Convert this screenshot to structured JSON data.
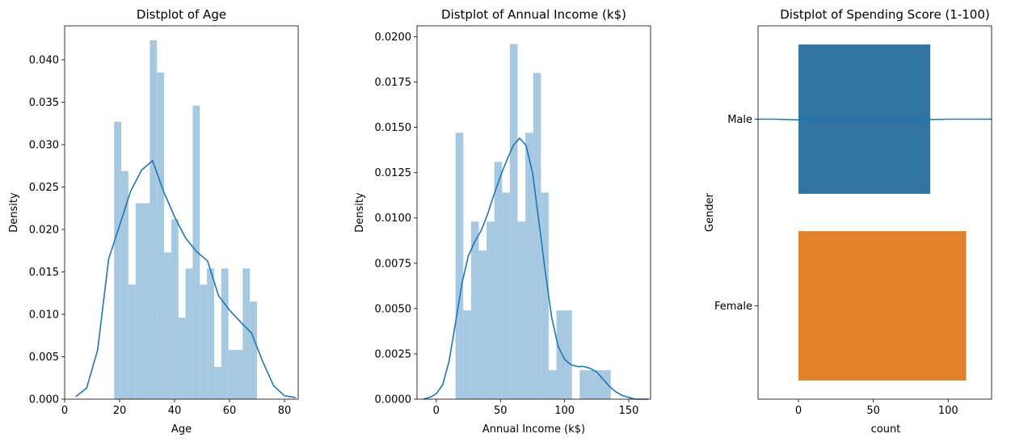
{
  "chart_data": [
    {
      "type": "bar",
      "title": "Distplot of Age",
      "xlabel": "Age",
      "ylabel": "Density",
      "xlim": [
        0,
        85
      ],
      "ylim": [
        0,
        0.044
      ],
      "xticks": [
        0,
        20,
        40,
        60,
        80
      ],
      "yticks": [
        "0.000",
        "0.005",
        "0.010",
        "0.015",
        "0.020",
        "0.025",
        "0.030",
        "0.035",
        "0.040"
      ],
      "bins_x": [
        18,
        20.6,
        23.2,
        25.8,
        28.4,
        31,
        33.6,
        36.2,
        38.8,
        41.4,
        44,
        46.6,
        49.2,
        51.8,
        54.4,
        57,
        59.6,
        62.2,
        64.8,
        67.4,
        70
      ],
      "densities": [
        0.0327,
        0.0269,
        0.0135,
        0.0231,
        0.0231,
        0.0423,
        0.0385,
        0.0173,
        0.0212,
        0.0096,
        0.0154,
        0.0346,
        0.0135,
        0.0154,
        0.0038,
        0.0154,
        0.0058,
        0.0058,
        0.0154,
        0.0115
      ],
      "kde": {
        "x": [
          4,
          8,
          12,
          16,
          20,
          24,
          28,
          32,
          36,
          40,
          44,
          48,
          52,
          56,
          60,
          64,
          68,
          72,
          76,
          80,
          84
        ],
        "y": [
          0.0003,
          0.0013,
          0.0058,
          0.0165,
          0.0205,
          0.0245,
          0.027,
          0.0281,
          0.0245,
          0.0215,
          0.019,
          0.0174,
          0.0163,
          0.0122,
          0.0105,
          0.0091,
          0.0078,
          0.0045,
          0.0016,
          0.0004,
          0.0002
        ]
      },
      "colors": {
        "bars": "#a6c8e0",
        "kde": "#1f77b4"
      }
    },
    {
      "type": "bar",
      "title": "Distplot of Annual Income (k$)",
      "xlabel": "Annual Income (k$)",
      "ylabel": "Density",
      "xlim": [
        -15,
        167
      ],
      "ylim": [
        0,
        0.0206
      ],
      "xticks": [
        0,
        50,
        100,
        150
      ],
      "yticks": [
        "0.0000",
        "0.0025",
        "0.0050",
        "0.0075",
        "0.0100",
        "0.0125",
        "0.0150",
        "0.0175",
        "0.0200"
      ],
      "bins_x": [
        15,
        21.05,
        27.1,
        33.15,
        39.2,
        45.25,
        51.3,
        57.35,
        63.4,
        69.45,
        75.5,
        81.55,
        87.6,
        93.65,
        99.7,
        105.75,
        111.8,
        117.85,
        123.9,
        129.95,
        136
      ],
      "densities": [
        0.0147,
        0.0049,
        0.0098,
        0.0082,
        0.0098,
        0.0131,
        0.0114,
        0.0196,
        0.0098,
        0.0147,
        0.018,
        0.0114,
        0.0016,
        0.0049,
        0.0049,
        0,
        0.0016,
        0.0016,
        0.0016,
        0.0016
      ],
      "kde": {
        "x": [
          -10,
          -5,
          0,
          5,
          10,
          15,
          20,
          25,
          30,
          35,
          40,
          45,
          50,
          55,
          60,
          65,
          70,
          75,
          80,
          85,
          90,
          95,
          100,
          105,
          110,
          115,
          120,
          125,
          130,
          135,
          140,
          145,
          150,
          155,
          160,
          165
        ],
        "y": [
          0,
          0.0001,
          0.0003,
          0.0008,
          0.0021,
          0.0042,
          0.0064,
          0.0079,
          0.0087,
          0.0093,
          0.0102,
          0.0113,
          0.0123,
          0.0132,
          0.014,
          0.0144,
          0.014,
          0.0125,
          0.0098,
          0.007,
          0.0045,
          0.0029,
          0.0022,
          0.0019,
          0.0018,
          0.0018,
          0.0017,
          0.0015,
          0.0011,
          0.0007,
          0.0004,
          0.0002,
          0.0001,
          0,
          0,
          0
        ]
      },
      "colors": {
        "bars": "#a6c8e0",
        "kde": "#1f77b4"
      }
    },
    {
      "type": "bar",
      "orientation": "horizontal",
      "title": "Distplot of Spending Score (1-100)",
      "xlabel": "count",
      "ylabel": "Gender",
      "categories": [
        "Male",
        "Female"
      ],
      "values": [
        88,
        112
      ],
      "xlim": [
        -27,
        129
      ],
      "xticks": [
        0,
        50,
        100
      ],
      "colors": {
        "Male": "#3274a1",
        "Female": "#e1812c",
        "line": "#1f77b4"
      },
      "overlay_line": {
        "x": [
          -27,
          -15,
          0,
          20,
          40,
          60,
          80,
          100,
          115,
          129
        ],
        "offset": [
          0,
          0,
          0.3,
          0,
          0,
          0,
          0.3,
          0,
          0,
          0
        ]
      }
    }
  ]
}
